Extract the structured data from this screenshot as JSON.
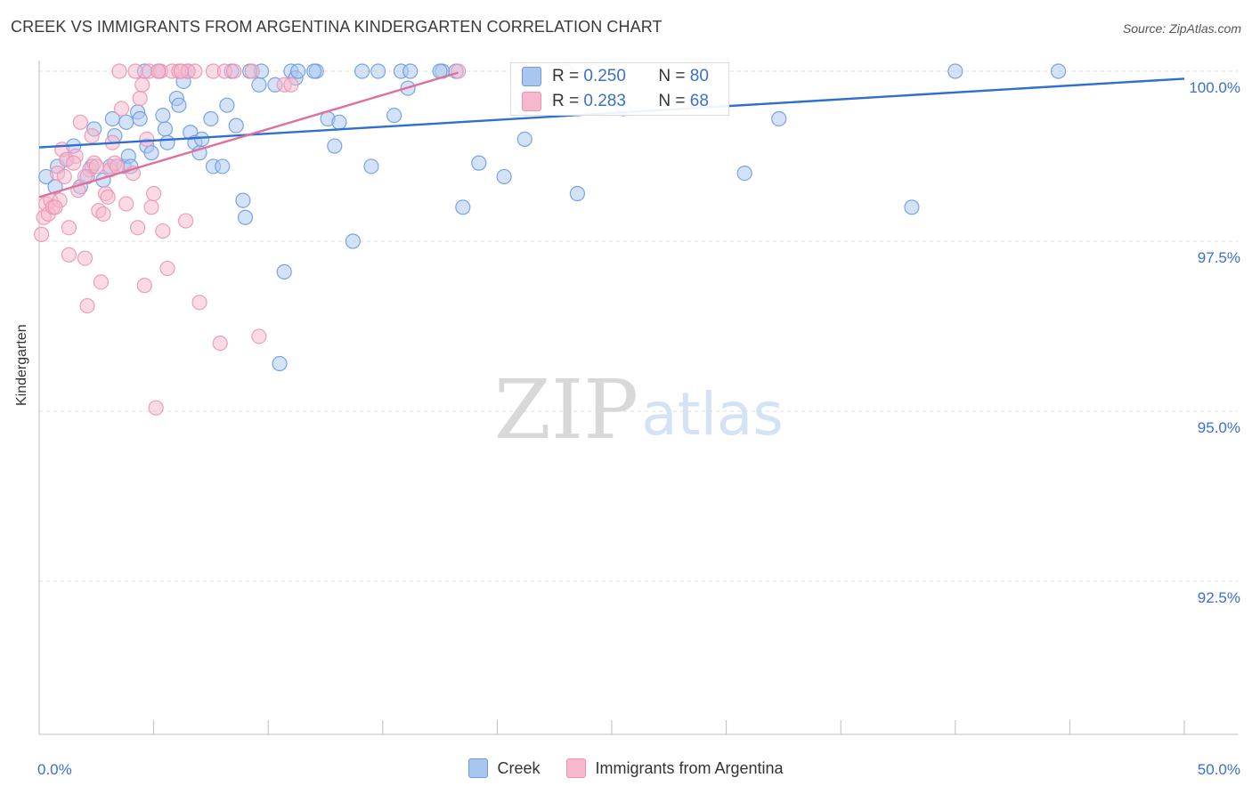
{
  "header": {
    "title": "CREEK VS IMMIGRANTS FROM ARGENTINA KINDERGARTEN CORRELATION CHART",
    "source": "Source: ZipAtlas.com"
  },
  "watermark": {
    "zip": "ZIP",
    "atlas": "atlas"
  },
  "legend": {
    "creek_label": "Creek",
    "argentina_label": "Immigrants from Argentina"
  },
  "stats": {
    "r_label": "R =",
    "n_label": "N =",
    "creek": {
      "r": "0.250",
      "n": "80"
    },
    "argentina": {
      "r": "0.283",
      "n": "68"
    }
  },
  "colors": {
    "creek_fill": "#a9c6f0",
    "creek_stroke": "#6d9be0",
    "creek_line": "#2f6fd0",
    "argentina_fill": "#f6b8cc",
    "argentina_stroke": "#ec93b1",
    "argentina_line": "#e0709a",
    "axis_text": "#3a6fd0"
  },
  "chart_data": {
    "type": "scatter",
    "title": "CREEK VS IMMIGRANTS FROM ARGENTINA KINDERGARTEN CORRELATION CHART",
    "xlabel": "",
    "ylabel": "Kindergarten",
    "xlim": [
      0,
      50
    ],
    "ylim": [
      90.3,
      100.2
    ],
    "x_tick_labels": [
      "0.0%",
      "50.0%"
    ],
    "y_ticks": [
      92.5,
      95.0,
      97.5,
      100.0
    ],
    "y_tick_labels": [
      "92.5%",
      "95.0%",
      "97.5%",
      "100.0%"
    ],
    "grid": "horizontal dashed",
    "legend_position": "bottom",
    "series": [
      {
        "name": "Creek",
        "r": 0.25,
        "n": 80,
        "trend": {
          "x": [
            0,
            50
          ],
          "y": [
            98.88,
            99.89
          ]
        },
        "points": [
          [
            0.3,
            98.45
          ],
          [
            0.7,
            98.3
          ],
          [
            0.8,
            98.6
          ],
          [
            1.2,
            98.7
          ],
          [
            1.5,
            98.9
          ],
          [
            1.8,
            98.3
          ],
          [
            2.1,
            98.45
          ],
          [
            2.3,
            98.6
          ],
          [
            2.4,
            99.15
          ],
          [
            2.8,
            98.4
          ],
          [
            3.1,
            98.6
          ],
          [
            3.2,
            99.3
          ],
          [
            3.3,
            99.05
          ],
          [
            3.7,
            98.6
          ],
          [
            3.8,
            99.25
          ],
          [
            3.9,
            98.75
          ],
          [
            4.0,
            98.6
          ],
          [
            4.3,
            99.4
          ],
          [
            4.4,
            99.3
          ],
          [
            4.7,
            98.9
          ],
          [
            4.9,
            98.8
          ],
          [
            5.2,
            100.0
          ],
          [
            5.4,
            99.35
          ],
          [
            5.5,
            99.15
          ],
          [
            5.6,
            98.95
          ],
          [
            6.0,
            99.6
          ],
          [
            6.1,
            99.5
          ],
          [
            6.3,
            99.85
          ],
          [
            6.6,
            99.1
          ],
          [
            6.8,
            98.95
          ],
          [
            7.0,
            98.8
          ],
          [
            7.1,
            99.0
          ],
          [
            7.5,
            99.3
          ],
          [
            7.6,
            98.6
          ],
          [
            8.0,
            98.6
          ],
          [
            8.2,
            99.5
          ],
          [
            8.4,
            100.0
          ],
          [
            8.6,
            99.2
          ],
          [
            8.9,
            98.1
          ],
          [
            9.0,
            97.85
          ],
          [
            9.6,
            99.8
          ],
          [
            9.7,
            100.0
          ],
          [
            10.3,
            99.8
          ],
          [
            10.5,
            95.7
          ],
          [
            10.7,
            97.05
          ],
          [
            11.0,
            100.0
          ],
          [
            11.2,
            99.9
          ],
          [
            11.3,
            100.0
          ],
          [
            12.1,
            100.0
          ],
          [
            12.6,
            99.3
          ],
          [
            12.9,
            98.9
          ],
          [
            13.1,
            99.25
          ],
          [
            13.7,
            97.5
          ],
          [
            14.1,
            100.0
          ],
          [
            14.5,
            98.6
          ],
          [
            14.8,
            100.0
          ],
          [
            15.5,
            99.35
          ],
          [
            15.8,
            100.0
          ],
          [
            16.1,
            99.75
          ],
          [
            16.2,
            100.0
          ],
          [
            17.6,
            100.0
          ],
          [
            18.2,
            100.0
          ],
          [
            18.5,
            98.0
          ],
          [
            19.2,
            98.65
          ],
          [
            20.3,
            98.45
          ],
          [
            21.2,
            99.0
          ],
          [
            23.0,
            100.0
          ],
          [
            23.5,
            98.2
          ],
          [
            24.2,
            100.0
          ],
          [
            25.5,
            99.45
          ],
          [
            30.8,
            98.5
          ],
          [
            32.3,
            99.3
          ],
          [
            38.1,
            98.0
          ],
          [
            40.0,
            100.0
          ],
          [
            44.5,
            100.0
          ],
          [
            6.5,
            100.0
          ],
          [
            12.0,
            100.0
          ],
          [
            17.5,
            100.0
          ],
          [
            4.6,
            100.0
          ],
          [
            9.2,
            100.0
          ]
        ]
      },
      {
        "name": "Immigrants from Argentina",
        "r": 0.283,
        "n": 68,
        "trend": {
          "x": [
            0,
            18.3
          ],
          "y": [
            98.15,
            99.98
          ]
        },
        "points": [
          [
            0.1,
            97.6
          ],
          [
            0.2,
            97.85
          ],
          [
            0.3,
            98.05
          ],
          [
            0.4,
            97.9
          ],
          [
            0.5,
            98.1
          ],
          [
            0.6,
            98.0
          ],
          [
            0.8,
            98.5
          ],
          [
            1.0,
            98.85
          ],
          [
            1.1,
            98.45
          ],
          [
            1.2,
            98.7
          ],
          [
            1.3,
            97.7
          ],
          [
            1.3,
            97.3
          ],
          [
            1.6,
            98.75
          ],
          [
            1.7,
            98.25
          ],
          [
            1.8,
            99.25
          ],
          [
            2.0,
            97.25
          ],
          [
            2.1,
            96.55
          ],
          [
            2.2,
            98.55
          ],
          [
            2.3,
            99.05
          ],
          [
            2.4,
            98.65
          ],
          [
            2.6,
            97.95
          ],
          [
            2.7,
            96.9
          ],
          [
            2.8,
            97.9
          ],
          [
            2.9,
            98.2
          ],
          [
            3.1,
            98.55
          ],
          [
            3.2,
            98.95
          ],
          [
            3.3,
            98.65
          ],
          [
            3.5,
            100.0
          ],
          [
            3.6,
            99.45
          ],
          [
            3.8,
            98.05
          ],
          [
            4.1,
            98.5
          ],
          [
            4.2,
            100.0
          ],
          [
            4.3,
            97.7
          ],
          [
            4.4,
            99.6
          ],
          [
            4.5,
            99.8
          ],
          [
            4.6,
            96.85
          ],
          [
            4.8,
            100.0
          ],
          [
            4.9,
            98.0
          ],
          [
            5.0,
            98.2
          ],
          [
            5.1,
            95.05
          ],
          [
            5.3,
            100.0
          ],
          [
            5.4,
            97.65
          ],
          [
            5.6,
            97.1
          ],
          [
            5.8,
            100.0
          ],
          [
            6.1,
            100.0
          ],
          [
            6.4,
            97.8
          ],
          [
            6.5,
            100.0
          ],
          [
            6.8,
            100.0
          ],
          [
            7.0,
            96.6
          ],
          [
            7.6,
            100.0
          ],
          [
            7.9,
            96.0
          ],
          [
            8.1,
            100.0
          ],
          [
            8.5,
            100.0
          ],
          [
            9.3,
            100.0
          ],
          [
            9.6,
            96.1
          ],
          [
            10.7,
            99.8
          ],
          [
            11.0,
            99.8
          ],
          [
            18.3,
            100.0
          ],
          [
            0.9,
            98.1
          ],
          [
            2.5,
            98.6
          ],
          [
            3.4,
            98.6
          ],
          [
            4.7,
            99.0
          ],
          [
            5.2,
            100.0
          ],
          [
            6.2,
            100.0
          ],
          [
            1.5,
            98.65
          ],
          [
            0.7,
            98.0
          ],
          [
            3.0,
            98.15
          ],
          [
            2.0,
            98.45
          ]
        ]
      }
    ]
  }
}
